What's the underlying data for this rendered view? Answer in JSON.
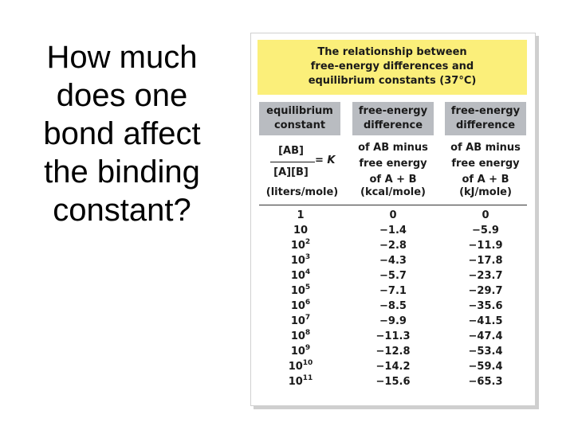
{
  "question": {
    "lines": [
      "How much",
      "does one",
      "bond affect",
      "the binding",
      "constant?"
    ]
  },
  "figure": {
    "title_lines": [
      "The relationship between",
      "free-energy differences and",
      "equilibrium constants (37°C)"
    ],
    "headers": [
      {
        "line1": "equilibrium",
        "line2": "constant"
      },
      {
        "line1": "free-energy",
        "line2": "difference"
      },
      {
        "line1": "free-energy",
        "line2": "difference"
      }
    ],
    "formula": {
      "numerator": "[AB]",
      "denominator": "[A][B]",
      "equals": "= ",
      "symbol": "K"
    },
    "sub_headers": [
      {
        "line1": "of AB minus",
        "line2": "free energy",
        "line3": "of A + B"
      },
      {
        "line1": "of AB minus",
        "line2": "free energy",
        "line3": "of A + B"
      }
    ],
    "units": [
      "(liters/mole)",
      "(kcal/mole)",
      "(kJ/mole)"
    ],
    "rows": [
      {
        "base": "1",
        "exp": "",
        "kcal": "0",
        "kj": "0"
      },
      {
        "base": "10",
        "exp": "",
        "kcal": "−1.4",
        "kj": "−5.9"
      },
      {
        "base": "10",
        "exp": "2",
        "kcal": "−2.8",
        "kj": "−11.9"
      },
      {
        "base": "10",
        "exp": "3",
        "kcal": "−4.3",
        "kj": "−17.8"
      },
      {
        "base": "10",
        "exp": "4",
        "kcal": "−5.7",
        "kj": "−23.7"
      },
      {
        "base": "10",
        "exp": "5",
        "kcal": "−7.1",
        "kj": "−29.7"
      },
      {
        "base": "10",
        "exp": "6",
        "kcal": "−8.5",
        "kj": "−35.6"
      },
      {
        "base": "10",
        "exp": "7",
        "kcal": "−9.9",
        "kj": "−41.5"
      },
      {
        "base": "10",
        "exp": "8",
        "kcal": "−11.3",
        "kj": "−47.4"
      },
      {
        "base": "10",
        "exp": "9",
        "kcal": "−12.8",
        "kj": "−53.4"
      },
      {
        "base": "10",
        "exp": "10",
        "kcal": "−14.2",
        "kj": "−59.4"
      },
      {
        "base": "10",
        "exp": "11",
        "kcal": "−15.6",
        "kj": "−65.3"
      }
    ],
    "colors": {
      "title_bg": "#fbef7a",
      "header_bg": "#b9bcc1"
    }
  }
}
